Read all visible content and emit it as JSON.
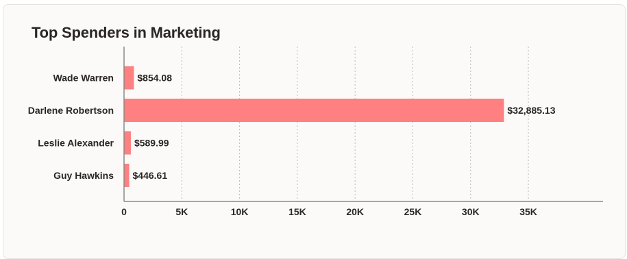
{
  "chart_data": {
    "type": "bar",
    "orientation": "horizontal",
    "title": "Top Spenders in Marketing",
    "categories": [
      "Wade Warren",
      "Darlene Robertson",
      "Leslie Alexander",
      "Guy Hawkins"
    ],
    "values": [
      854.08,
      32885.13,
      589.99,
      446.61
    ],
    "value_labels": [
      "$854.08",
      "$32,885.13",
      "$589.99",
      "$446.61"
    ],
    "xlim": [
      0,
      39000
    ],
    "x_ticks": [
      0,
      5000,
      10000,
      15000,
      20000,
      25000,
      30000,
      35000
    ],
    "x_tick_labels": [
      "0",
      "5K",
      "10K",
      "15K",
      "20K",
      "25K",
      "30K",
      "35K"
    ],
    "grid": "vertical dashed",
    "bar_color": "#ff8080"
  }
}
